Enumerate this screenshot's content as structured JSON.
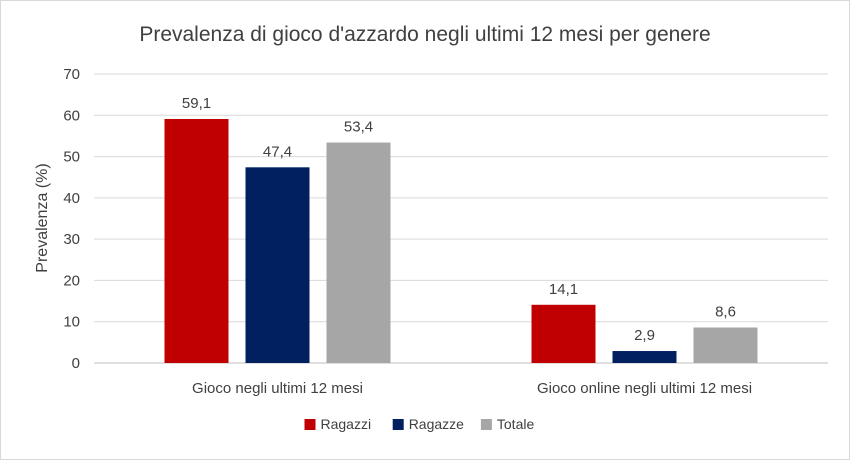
{
  "chart_data": {
    "type": "bar",
    "title": "Prevalenza di gioco d'azzardo negli ultimi 12 mesi per genere",
    "xlabel": "",
    "ylabel": "Prevalenza (%)",
    "ylim": [
      0,
      70
    ],
    "yticks": [
      0,
      10,
      20,
      30,
      40,
      50,
      60,
      70
    ],
    "grid": true,
    "legend_position": "bottom",
    "categories": [
      "Gioco negli ultimi 12 mesi",
      "Gioco online negli ultimi 12 mesi"
    ],
    "series": [
      {
        "name": "Ragazzi",
        "color": "#c00000",
        "values": [
          59.1,
          14.1
        ],
        "labels": [
          "59,1",
          "14,1"
        ]
      },
      {
        "name": "Ragazze",
        "color": "#002060",
        "values": [
          47.4,
          2.9
        ],
        "labels": [
          "47,4",
          "2,9"
        ]
      },
      {
        "name": "Totale",
        "color": "#a6a6a6",
        "values": [
          53.4,
          8.6
        ],
        "labels": [
          "53,4",
          "8,6"
        ]
      }
    ]
  }
}
